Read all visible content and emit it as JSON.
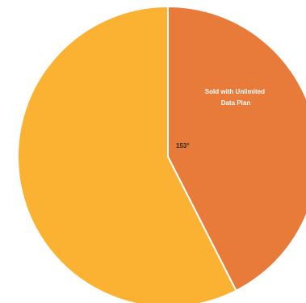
{
  "chart_data": {
    "type": "pie",
    "title": "",
    "slices": [
      {
        "label": "Sold with Unlimited Data Plan",
        "value": 153,
        "color": "#e97b3a"
      },
      {
        "label": "",
        "value": 207,
        "color": "#fbb131"
      }
    ],
    "annotation": "153°",
    "start_angle": "12 o'clock",
    "direction": "clockwise"
  }
}
